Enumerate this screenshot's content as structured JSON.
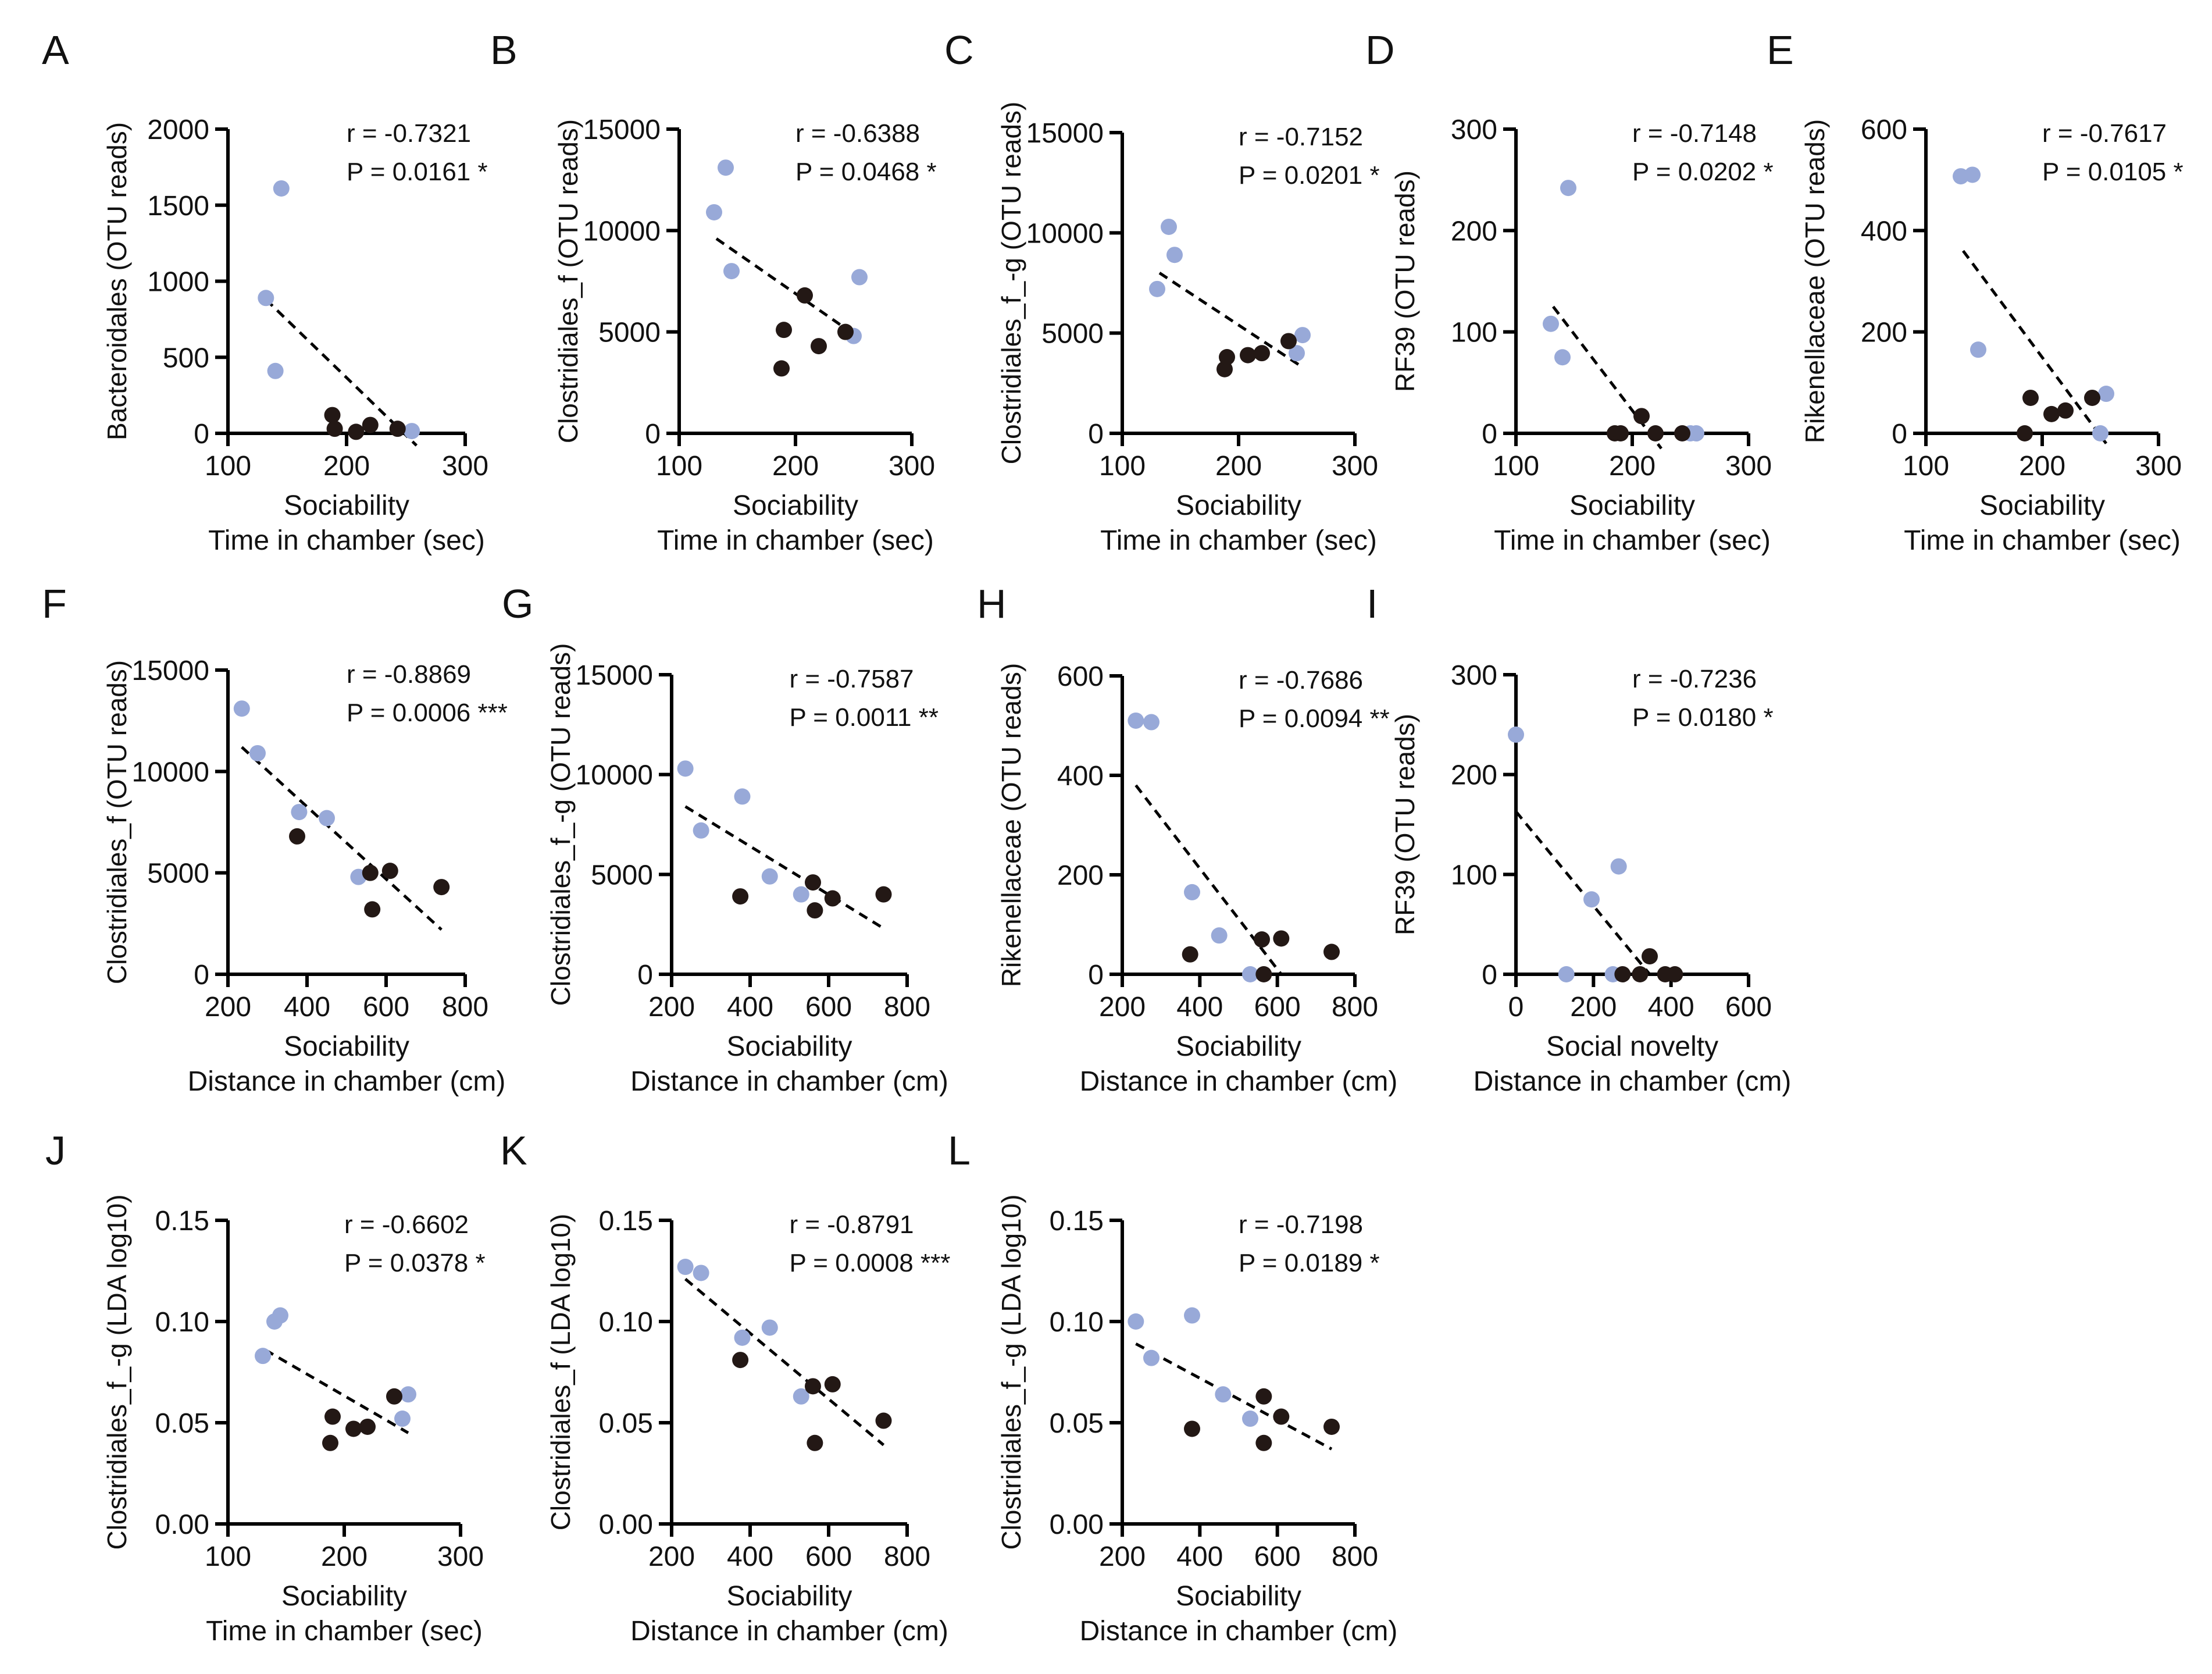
{
  "colors": {
    "blue": "#98a9d8",
    "black": "#231815",
    "axis": "#000000",
    "fit": "#000000"
  },
  "chart_data": [
    {
      "panel": "A",
      "type": "scatter",
      "ylabel": "Bacteroidales (OTU reads)",
      "xlabel": "Sociability",
      "xlabel2": "Time in chamber (sec)",
      "xlim": [
        100,
        300
      ],
      "xticks": [
        100,
        200,
        300
      ],
      "xtick_labels": [
        "100",
        "200",
        "300"
      ],
      "ylim": [
        0,
        2000
      ],
      "yticks": [
        0,
        500,
        1000,
        1500,
        2000
      ],
      "ytick_labels": [
        "0",
        "500",
        "1000",
        "1500",
        "2000"
      ],
      "r_text": "r = -0.7321",
      "p_text": "P = 0.0161 *",
      "series": [
        {
          "name": "blue",
          "x": [
            132,
            140,
            145,
            255
          ],
          "y": [
            890,
            410,
            1610,
            15
          ]
        },
        {
          "name": "black",
          "x": [
            188,
            190,
            208,
            220,
            243
          ],
          "y": [
            120,
            30,
            10,
            55,
            30
          ]
        }
      ],
      "fit": [
        [
          132,
          880
        ],
        [
          259,
          -80
        ]
      ]
    },
    {
      "panel": "B",
      "type": "scatter",
      "ylabel": "Clostridiales_f (OTU reads)",
      "xlabel": "Sociability",
      "xlabel2": "Time in chamber (sec)",
      "xlim": [
        100,
        300
      ],
      "xticks": [
        100,
        200,
        300
      ],
      "xtick_labels": [
        "100",
        "200",
        "300"
      ],
      "ylim": [
        0,
        15000
      ],
      "yticks": [
        0,
        5000,
        10000,
        15000
      ],
      "ytick_labels": [
        "0",
        "5000",
        "10000",
        "15000"
      ],
      "r_text": "r = -0.6388",
      "p_text": "P = 0.0468 *",
      "series": [
        {
          "name": "blue",
          "x": [
            130,
            140,
            145,
            250,
            255
          ],
          "y": [
            10900,
            13100,
            8000,
            4800,
            7700
          ]
        },
        {
          "name": "black",
          "x": [
            188,
            190,
            208,
            220,
            243
          ],
          "y": [
            3200,
            5100,
            6800,
            4300,
            5000
          ]
        }
      ],
      "fit": [
        [
          132,
          9600
        ],
        [
          255,
          4700
        ]
      ]
    },
    {
      "panel": "C",
      "type": "scatter",
      "ylabel": "Clostridiales_f_-g (OTU reads)",
      "xlabel": "Sociability",
      "xlabel2": "Time in chamber (sec)",
      "xlim": [
        100,
        300
      ],
      "xticks": [
        100,
        200,
        300
      ],
      "xtick_labels": [
        "100",
        "200",
        "300"
      ],
      "ylim": [
        0,
        15000
      ],
      "yticks": [
        0,
        5000,
        10000,
        15000
      ],
      "ytick_labels": [
        "0",
        "5000",
        "10000",
        "15000"
      ],
      "r_text": "r = -0.7152",
      "p_text": "P = 0.0201 *",
      "series": [
        {
          "name": "blue",
          "x": [
            130,
            140,
            145,
            250,
            255
          ],
          "y": [
            7200,
            10300,
            8900,
            4000,
            4900
          ]
        },
        {
          "name": "black",
          "x": [
            188,
            190,
            208,
            220,
            243
          ],
          "y": [
            3200,
            3800,
            3900,
            4000,
            4600
          ]
        }
      ],
      "fit": [
        [
          132,
          8000
        ],
        [
          255,
          3300
        ]
      ]
    },
    {
      "panel": "D",
      "type": "scatter",
      "ylabel": "RF39 (OTU reads)",
      "xlabel": "Sociability",
      "xlabel2": "Time in chamber (sec)",
      "xlim": [
        100,
        300
      ],
      "xticks": [
        100,
        200,
        300
      ],
      "xtick_labels": [
        "100",
        "200",
        "300"
      ],
      "ylim": [
        0,
        300
      ],
      "yticks": [
        0,
        100,
        200,
        300
      ],
      "ytick_labels": [
        "0",
        "100",
        "200",
        "300"
      ],
      "r_text": "r = -0.7148",
      "p_text": "P = 0.0202 *",
      "series": [
        {
          "name": "blue",
          "x": [
            130,
            140,
            145,
            250,
            255
          ],
          "y": [
            108,
            75,
            242,
            0,
            0
          ]
        },
        {
          "name": "black",
          "x": [
            185,
            190,
            208,
            220,
            243
          ],
          "y": [
            0,
            0,
            17,
            0,
            0
          ]
        }
      ],
      "fit": [
        [
          132,
          125
        ],
        [
          225,
          -15
        ]
      ]
    },
    {
      "panel": "E",
      "type": "scatter",
      "ylabel": "Rikenellaceae (OTU reads)",
      "xlabel": "Sociability",
      "xlabel2": "Time in chamber (sec)",
      "xlim": [
        100,
        300
      ],
      "xticks": [
        100,
        200,
        300
      ],
      "xtick_labels": [
        "100",
        "200",
        "300"
      ],
      "ylim": [
        0,
        600
      ],
      "yticks": [
        0,
        200,
        400,
        600
      ],
      "ytick_labels": [
        "0",
        "200",
        "400",
        "600"
      ],
      "r_text": "r = -0.7617",
      "p_text": "P = 0.0105 *",
      "series": [
        {
          "name": "blue",
          "x": [
            130,
            140,
            145,
            250,
            255
          ],
          "y": [
            507,
            510,
            165,
            0,
            78
          ]
        },
        {
          "name": "black",
          "x": [
            185,
            190,
            208,
            220,
            243
          ],
          "y": [
            0,
            70,
            38,
            45,
            70
          ]
        }
      ],
      "fit": [
        [
          132,
          360
        ],
        [
          255,
          -20
        ]
      ]
    },
    {
      "panel": "F",
      "type": "scatter",
      "ylabel": "Clostridiales_f (OTU reads)",
      "xlabel": "Sociability",
      "xlabel2": "Distance in chamber (cm)",
      "xlim": [
        200,
        800
      ],
      "xticks": [
        200,
        400,
        600,
        800
      ],
      "xtick_labels": [
        "200",
        "400",
        "600",
        "800"
      ],
      "ylim": [
        0,
        15000
      ],
      "yticks": [
        0,
        5000,
        10000,
        15000
      ],
      "ytick_labels": [
        "0",
        "5000",
        "10000",
        "15000"
      ],
      "r_text": "r = -0.8869",
      "p_text": "P = 0.0006 ***",
      "series": [
        {
          "name": "blue",
          "x": [
            235,
            275,
            380,
            450,
            530
          ],
          "y": [
            13100,
            10900,
            8000,
            7700,
            4800
          ]
        },
        {
          "name": "black",
          "x": [
            375,
            560,
            565,
            610,
            740
          ],
          "y": [
            6800,
            5000,
            3200,
            5100,
            4300
          ]
        }
      ],
      "fit": [
        [
          235,
          11200
        ],
        [
          740,
          2200
        ]
      ]
    },
    {
      "panel": "G",
      "type": "scatter",
      "ylabel": "Clostridiales_f_-g (OTU reads)",
      "xlabel": "Sociability",
      "xlabel2": "Distance in chamber (cm)",
      "xlim": [
        200,
        800
      ],
      "xticks": [
        200,
        400,
        600,
        800
      ],
      "xtick_labels": [
        "200",
        "400",
        "600",
        "800"
      ],
      "ylim": [
        0,
        15000
      ],
      "yticks": [
        0,
        5000,
        10000,
        15000
      ],
      "ytick_labels": [
        "0",
        "5000",
        "10000",
        "15000"
      ],
      "r_text": "r = -0.7587",
      "p_text": "P = 0.0011 **",
      "series": [
        {
          "name": "blue",
          "x": [
            235,
            275,
            380,
            450,
            530
          ],
          "y": [
            10300,
            7200,
            8900,
            4900,
            4000
          ]
        },
        {
          "name": "black",
          "x": [
            375,
            560,
            565,
            610,
            740
          ],
          "y": [
            3900,
            4600,
            3200,
            3800,
            4000
          ]
        }
      ],
      "fit": [
        [
          235,
          8400
        ],
        [
          740,
          2300
        ]
      ]
    },
    {
      "panel": "H",
      "type": "scatter",
      "ylabel": "Rikenellaceae (OTU reads)",
      "xlabel": "Sociability",
      "xlabel2": "Distance in chamber (cm)",
      "xlim": [
        200,
        800
      ],
      "xticks": [
        200,
        400,
        600,
        800
      ],
      "xtick_labels": [
        "200",
        "400",
        "600",
        "800"
      ],
      "ylim": [
        0,
        600
      ],
      "yticks": [
        0,
        200,
        400,
        600
      ],
      "ytick_labels": [
        "0",
        "200",
        "400",
        "600"
      ],
      "r_text": "r = -0.7686",
      "p_text": "P = 0.0094 **",
      "series": [
        {
          "name": "blue",
          "x": [
            235,
            275,
            380,
            450,
            530
          ],
          "y": [
            510,
            507,
            165,
            78,
            0
          ]
        },
        {
          "name": "black",
          "x": [
            375,
            560,
            565,
            610,
            740
          ],
          "y": [
            40,
            70,
            0,
            72,
            45
          ]
        }
      ],
      "fit": [
        [
          235,
          380
        ],
        [
          610,
          0
        ]
      ]
    },
    {
      "panel": "I",
      "type": "scatter",
      "ylabel": "RF39 (OTU reads)",
      "xlabel": "Social novelty",
      "xlabel2": "Distance in chamber (cm)",
      "xlim": [
        0,
        600
      ],
      "xticks": [
        0,
        200,
        400,
        600
      ],
      "xtick_labels": [
        "0",
        "200",
        "400",
        "600"
      ],
      "ylim": [
        0,
        300
      ],
      "yticks": [
        0,
        100,
        200,
        300
      ],
      "ytick_labels": [
        "0",
        "100",
        "200",
        "300"
      ],
      "r_text": "r = -0.7236",
      "p_text": "P = 0.0180 *",
      "series": [
        {
          "name": "blue",
          "x": [
            0,
            130,
            195,
            250,
            265
          ],
          "y": [
            240,
            0,
            75,
            0,
            108
          ]
        },
        {
          "name": "black",
          "x": [
            275,
            320,
            345,
            385,
            410
          ],
          "y": [
            0,
            0,
            18,
            0,
            0
          ]
        }
      ],
      "fit": [
        [
          0,
          163
        ],
        [
          345,
          0
        ]
      ]
    },
    {
      "panel": "J",
      "type": "scatter",
      "ylabel": "Clostridiales_f_-g (LDA log10)",
      "xlabel": "Sociability",
      "xlabel2": "Time in chamber (sec)",
      "xlim": [
        100,
        300
      ],
      "xticks": [
        100,
        200,
        300
      ],
      "xtick_labels": [
        "100",
        "200",
        "300"
      ],
      "ylim": [
        0,
        0.15
      ],
      "yticks": [
        0,
        0.05,
        0.1,
        0.15
      ],
      "ytick_labels": [
        "0.00",
        "0.05",
        "0.10",
        "0.15"
      ],
      "r_text": "r = -0.6602",
      "p_text": "P = 0.0378 *",
      "series": [
        {
          "name": "blue",
          "x": [
            130,
            140,
            145,
            250,
            255
          ],
          "y": [
            0.083,
            0.1,
            0.103,
            0.052,
            0.064
          ]
        },
        {
          "name": "black",
          "x": [
            188,
            190,
            208,
            220,
            243
          ],
          "y": [
            0.04,
            0.053,
            0.047,
            0.048,
            0.063
          ]
        }
      ],
      "fit": [
        [
          132,
          0.086
        ],
        [
          255,
          0.045
        ]
      ]
    },
    {
      "panel": "K",
      "type": "scatter",
      "ylabel": "Clostridiales_f (LDA log10)",
      "xlabel": "Sociability",
      "xlabel2": "Distance in chamber (cm)",
      "xlim": [
        200,
        800
      ],
      "xticks": [
        200,
        400,
        600,
        800
      ],
      "xtick_labels": [
        "200",
        "400",
        "600",
        "800"
      ],
      "ylim": [
        0,
        0.15
      ],
      "yticks": [
        0,
        0.05,
        0.1,
        0.15
      ],
      "ytick_labels": [
        "0.00",
        "0.05",
        "0.10",
        "0.15"
      ],
      "r_text": "r = -0.8791",
      "p_text": "P = 0.0008 ***",
      "series": [
        {
          "name": "blue",
          "x": [
            235,
            275,
            380,
            450,
            530
          ],
          "y": [
            0.127,
            0.124,
            0.092,
            0.097,
            0.063
          ]
        },
        {
          "name": "black",
          "x": [
            375,
            560,
            565,
            610,
            740
          ],
          "y": [
            0.081,
            0.068,
            0.04,
            0.069,
            0.051
          ]
        }
      ],
      "fit": [
        [
          235,
          0.121
        ],
        [
          740,
          0.039
        ]
      ]
    },
    {
      "panel": "L",
      "type": "scatter",
      "ylabel": "Clostridiales_f_-g (LDA log10)",
      "xlabel": "Sociability",
      "xlabel2": "Distance in chamber (cm)",
      "xlim": [
        200,
        800
      ],
      "xticks": [
        200,
        400,
        600,
        800
      ],
      "xtick_labels": [
        "200",
        "400",
        "600",
        "800"
      ],
      "ylim": [
        0,
        0.15
      ],
      "yticks": [
        0,
        0.05,
        0.1,
        0.15
      ],
      "ytick_labels": [
        "0.00",
        "0.05",
        "0.10",
        "0.15"
      ],
      "r_text": "r = -0.7198",
      "p_text": "P = 0.0189 *",
      "series": [
        {
          "name": "blue",
          "x": [
            235,
            275,
            380,
            460,
            530
          ],
          "y": [
            0.1,
            0.082,
            0.103,
            0.064,
            0.052
          ]
        },
        {
          "name": "black",
          "x": [
            380,
            565,
            565,
            610,
            740
          ],
          "y": [
            0.047,
            0.063,
            0.04,
            0.053,
            0.048
          ]
        }
      ],
      "fit": [
        [
          235,
          0.089
        ],
        [
          740,
          0.037
        ]
      ]
    }
  ]
}
